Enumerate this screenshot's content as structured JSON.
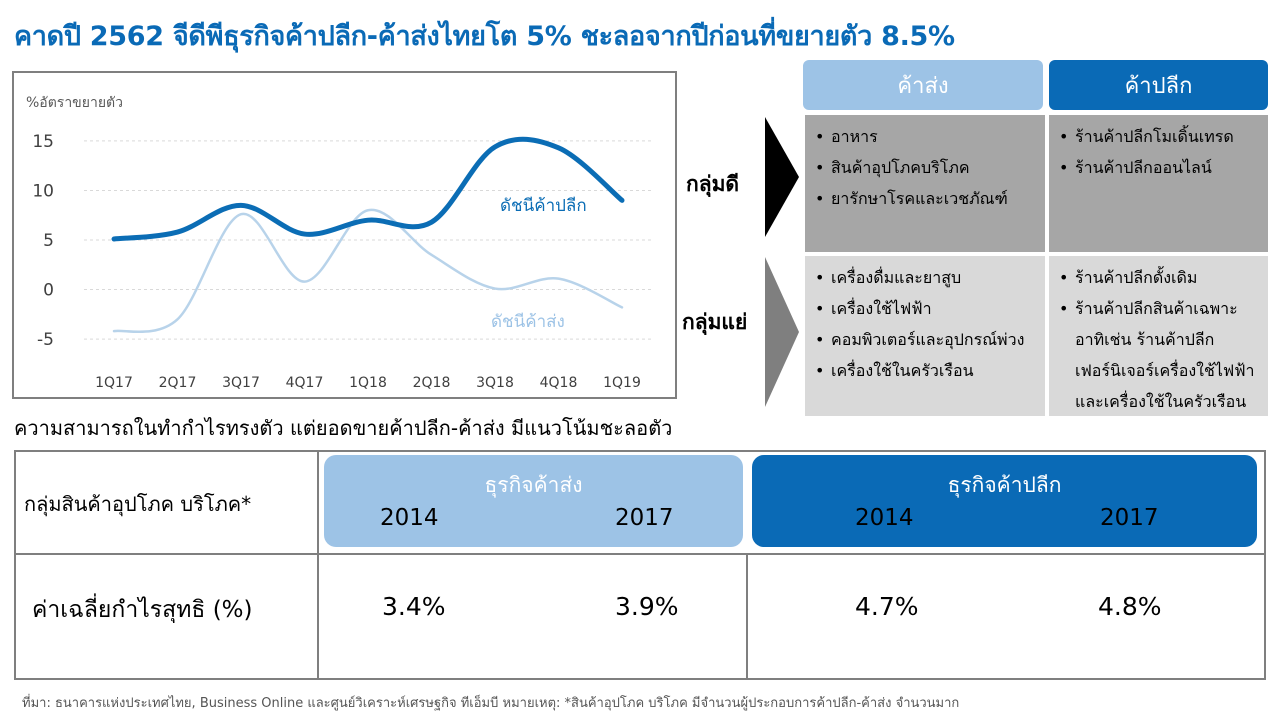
{
  "title": "คาดปี 2562 จีดีพีธุรกิจค้าปลีก-ค้าส่งไทยโต 5% ชะลอจากปีก่อนที่ขยายตัว 8.5%",
  "chart_data": {
    "type": "line",
    "ylabel": "%อัตราขยายตัว",
    "categories": [
      "1Q17",
      "2Q17",
      "3Q17",
      "4Q17",
      "1Q18",
      "2Q18",
      "3Q18",
      "4Q18",
      "1Q19"
    ],
    "yticks": [
      15,
      10,
      5,
      0,
      -5
    ],
    "ylim": [
      -6,
      16
    ],
    "grid": true,
    "series": [
      {
        "name": "ดัชนีค้าปลีก",
        "values": [
          5.1,
          5.8,
          8.5,
          5.6,
          7.0,
          6.8,
          14.4,
          14.3,
          9.0
        ],
        "color": "#0b6db5"
      },
      {
        "name": "ดัชนีค้าส่ง",
        "values": [
          -4.2,
          -3.0,
          7.6,
          0.8,
          8.0,
          3.5,
          0.1,
          1.1,
          -1.8
        ],
        "color": "#b8d3ea"
      }
    ]
  },
  "matrix": {
    "wholesale_header": "ค้าส่ง",
    "retail_header": "ค้าปลีก",
    "good_label": "กลุ่มดี",
    "bad_label": "กลุ่มแย่",
    "good_wholesale": [
      "อาหาร",
      "สินค้าอุปโภคบริโภค",
      "ยารักษาโรคและเวชภัณฑ์"
    ],
    "good_retail": [
      "ร้านค้าปลีกโมเดิ้นเทรด",
      "ร้านค้าปลีกออนไลน์"
    ],
    "bad_wholesale": [
      "เครื่องดื่มและยาสูบ",
      "เครื่องใช้ไฟฟ้า",
      "คอมพิวเตอร์และอุปกรณ์พ่วง",
      "เครื่องใช้ในครัวเรือน"
    ],
    "bad_retail": [
      "ร้านค้าปลีกดั้งเดิม",
      "ร้านค้าปลีกสินค้าเฉพาะ",
      "อาทิเช่น ร้านค้าปลีก",
      "เฟอร์นิเจอร์เครื่องใช้ไฟฟ้า",
      "และเครื่องใช้ในครัวเรือน"
    ]
  },
  "subtitle": "ความสามารถในทำกำไรทรงตัว แต่ยอดขายค้าปลีก-ค้าส่ง มีแนวโน้มชะลอตัว",
  "table": {
    "row1_label": "กลุ่มสินค้าอุปโภค บริโภค*",
    "row2_label": "ค่าเฉลี่ยกำไรสุทธิ (%)",
    "wholesale_title": "ธุรกิจค้าส่ง",
    "retail_title": "ธุรกิจค้าปลีก",
    "years": [
      "2014",
      "2017",
      "2014",
      "2017"
    ],
    "values": [
      "3.4%",
      "3.9%",
      "4.7%",
      "4.8%"
    ]
  },
  "source": "ที่มา: ธนาคารแห่งประเทศไทย,  Business Online และศูนย์วิเคราะห์เศรษฐกิจ ทีเอ็มบี    หมายเหตุ: *สินค้าอุปโภค บริโภค มีจำนวนผู้ประกอบการค้าปลีก-ค้าส่ง จำนวนมาก",
  "colors": {
    "accent": "#0a6ab6",
    "light": "#9dc3e6",
    "dark_gray": "#a6a6a6",
    "light_gray": "#d9d9d9"
  }
}
